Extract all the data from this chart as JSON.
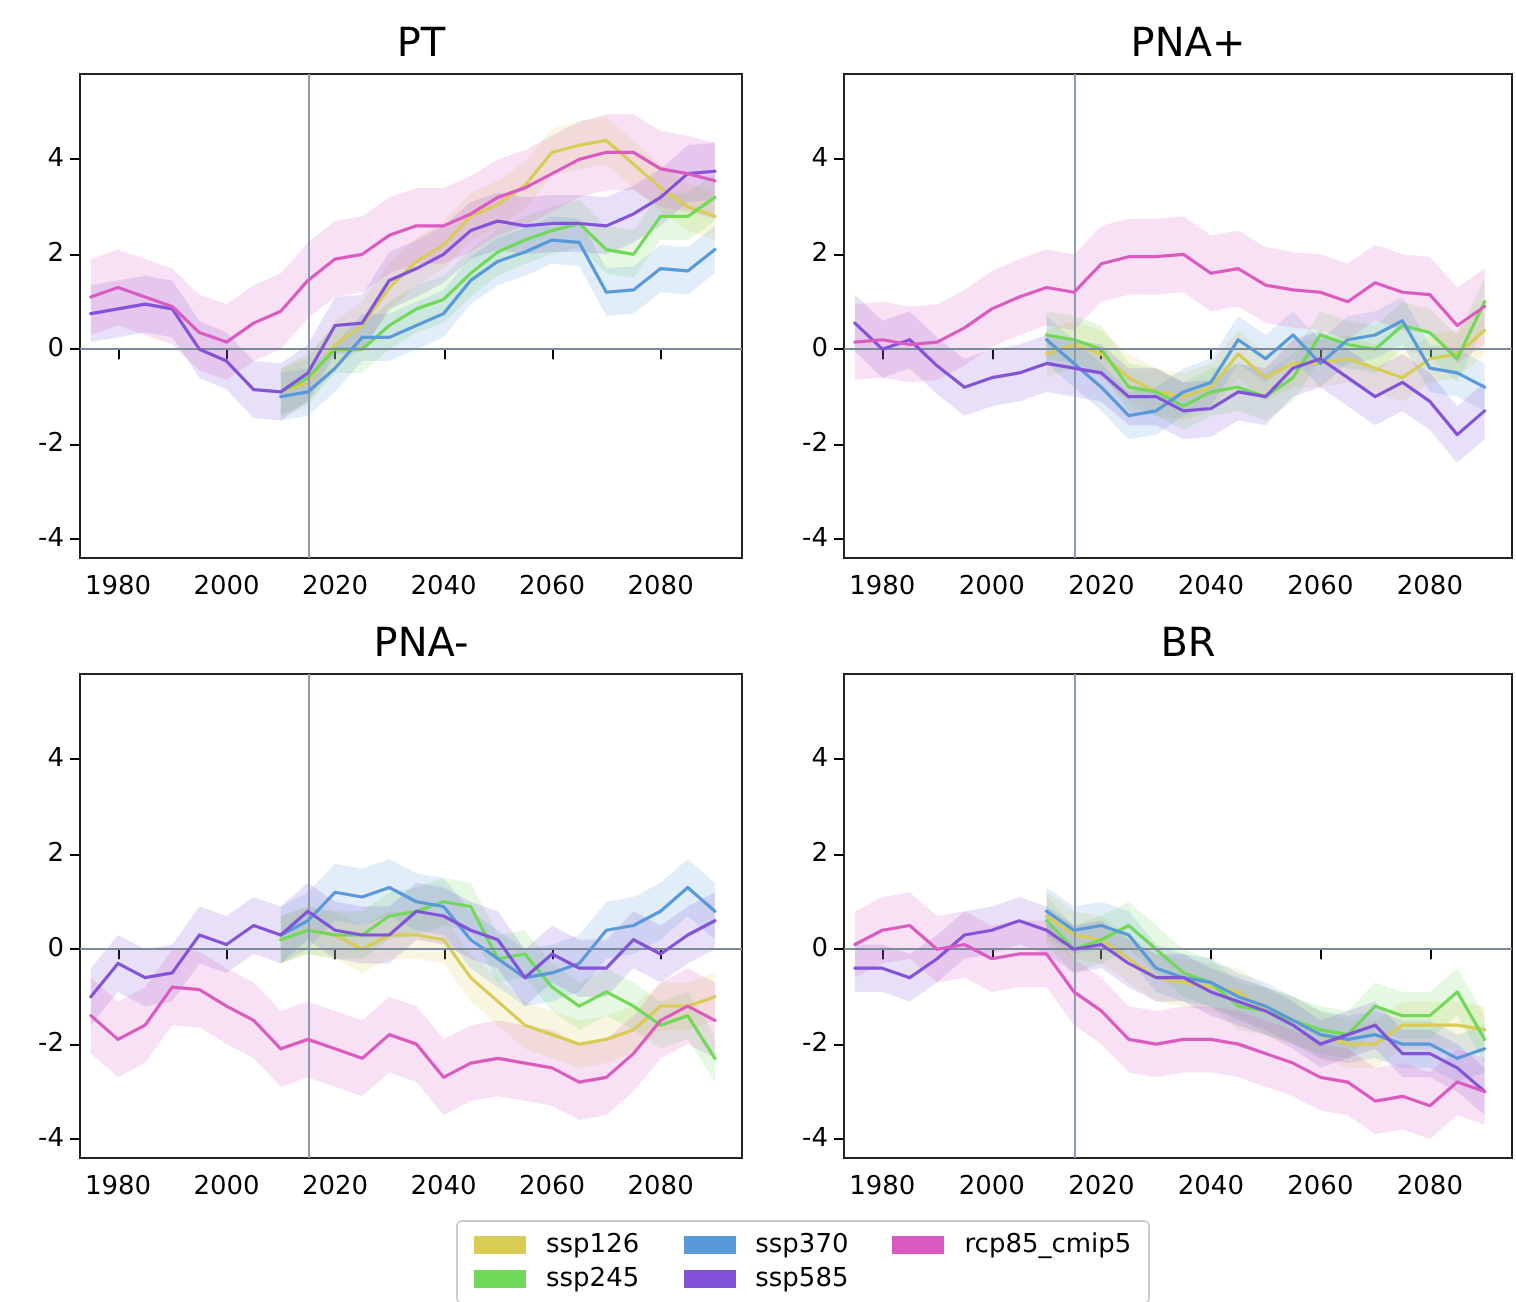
{
  "chart_data": [
    {
      "type": "line",
      "title": "PT",
      "x": [
        1975,
        1980,
        1985,
        1990,
        1995,
        2000,
        2005,
        2010,
        2015,
        2020,
        2025,
        2030,
        2035,
        2040,
        2045,
        2050,
        2055,
        2060,
        2065,
        2070,
        2075,
        2080,
        2085,
        2090
      ],
      "xlim": [
        1973,
        2095
      ],
      "xticks": [
        1980,
        2000,
        2020,
        2040,
        2060,
        2080
      ],
      "ylim": [
        -4.4,
        5.8
      ],
      "yticks": [
        -4,
        -2,
        0,
        2,
        4
      ],
      "legend": "bottom",
      "ref_lines": [
        {
          "axis": "x",
          "value": 2015,
          "color": "#8c9bb0"
        },
        {
          "axis": "y",
          "value": 0,
          "color": "#7c8a99"
        }
      ],
      "series": [
        {
          "name": "ssp126",
          "color": "#d9cc55",
          "x": [
            2010,
            2015,
            2020,
            2025,
            2030,
            2035,
            2040,
            2045,
            2050,
            2055,
            2060,
            2065,
            2070,
            2075,
            2080,
            2085,
            2090
          ],
          "values": [
            -0.9,
            -0.7,
            0.1,
            0.5,
            1.3,
            1.85,
            2.2,
            2.8,
            3.05,
            3.45,
            4.15,
            4.3,
            4.4,
            3.9,
            3.4,
            3.0,
            2.8
          ],
          "lower": [
            -1.4,
            -1.2,
            -0.4,
            0,
            0.8,
            1.35,
            1.7,
            2.3,
            2.55,
            2.95,
            3.65,
            3.8,
            3.9,
            3.4,
            2.9,
            2.5,
            2.3
          ],
          "upper": [
            -0.4,
            -0.2,
            0.6,
            1.0,
            1.8,
            2.35,
            2.7,
            3.3,
            3.55,
            3.95,
            4.65,
            4.8,
            4.9,
            4.4,
            3.9,
            3.5,
            3.3
          ]
        },
        {
          "name": "ssp245",
          "color": "#70d957",
          "x": [
            2010,
            2015,
            2020,
            2025,
            2030,
            2035,
            2040,
            2045,
            2050,
            2055,
            2060,
            2065,
            2070,
            2075,
            2080,
            2085,
            2090
          ],
          "values": [
            -0.9,
            -0.6,
            0,
            0,
            0.5,
            0.85,
            1.05,
            1.6,
            2.05,
            2.3,
            2.5,
            2.65,
            2.1,
            2.0,
            2.8,
            2.8,
            3.2
          ],
          "lower": [
            -1.4,
            -1.1,
            -0.5,
            -0.5,
            0,
            0.35,
            0.55,
            1.1,
            1.55,
            1.8,
            2.0,
            2.15,
            1.6,
            1.5,
            2.3,
            2.3,
            2.7
          ],
          "upper": [
            -0.4,
            -0.1,
            0.5,
            0.5,
            1.0,
            1.35,
            1.55,
            2.1,
            2.55,
            2.8,
            3.0,
            3.15,
            2.6,
            2.5,
            3.3,
            3.3,
            3.7
          ]
        },
        {
          "name": "ssp370",
          "color": "#5899d9",
          "x": [
            2010,
            2015,
            2020,
            2025,
            2030,
            2035,
            2040,
            2045,
            2050,
            2055,
            2060,
            2065,
            2070,
            2075,
            2080,
            2085,
            2090
          ],
          "values": [
            -1.0,
            -0.9,
            -0.4,
            0.25,
            0.25,
            0.5,
            0.75,
            1.45,
            1.85,
            2.05,
            2.3,
            2.25,
            1.2,
            1.25,
            1.7,
            1.65,
            2.1
          ],
          "lower": [
            -1.5,
            -1.4,
            -0.9,
            -0.25,
            -0.25,
            0,
            0.25,
            0.95,
            1.35,
            1.55,
            1.8,
            1.75,
            0.7,
            0.75,
            1.2,
            1.15,
            1.6
          ],
          "upper": [
            -0.5,
            -0.4,
            0.1,
            0.75,
            0.75,
            1.0,
            1.25,
            1.95,
            2.35,
            2.55,
            2.8,
            2.75,
            1.7,
            1.75,
            2.2,
            2.15,
            2.6
          ]
        },
        {
          "name": "ssp585",
          "color": "#8253d8",
          "values": [
            0.75,
            0.85,
            0.95,
            0.85,
            0,
            -0.25,
            -0.85,
            -0.9,
            -0.5,
            0.5,
            0.55,
            1.45,
            1.7,
            2.0,
            2.5,
            2.7,
            2.6,
            2.65,
            2.65,
            2.6,
            2.85,
            3.2,
            3.7,
            3.75
          ],
          "lower": [
            0.15,
            0.25,
            0.35,
            0.25,
            -0.6,
            -0.85,
            -1.45,
            -1.5,
            -1.1,
            -0.1,
            -0.05,
            0.85,
            1.1,
            1.4,
            1.9,
            2.1,
            2.0,
            2.05,
            2.05,
            2.0,
            2.25,
            2.6,
            3.1,
            3.15
          ],
          "upper": [
            1.35,
            1.45,
            1.55,
            1.45,
            0.6,
            0.35,
            -0.25,
            -0.3,
            0.1,
            1.1,
            1.15,
            2.05,
            2.3,
            2.6,
            3.1,
            3.3,
            3.2,
            3.25,
            3.25,
            3.2,
            3.45,
            3.8,
            4.3,
            4.35
          ]
        },
        {
          "name": "rcp85_cmip5",
          "color": "#da5ac0",
          "values": [
            1.1,
            1.3,
            1.1,
            0.9,
            0.35,
            0.15,
            0.55,
            0.8,
            1.45,
            1.9,
            2.0,
            2.4,
            2.6,
            2.6,
            2.85,
            3.2,
            3.4,
            3.7,
            4.0,
            4.15,
            4.15,
            3.8,
            3.7,
            3.55
          ],
          "lower": [
            0.3,
            0.5,
            0.3,
            0.1,
            -0.45,
            -0.65,
            -0.25,
            0,
            0.65,
            1.1,
            1.2,
            1.6,
            1.8,
            1.8,
            2.05,
            2.4,
            2.6,
            2.9,
            3.2,
            3.35,
            3.35,
            3.0,
            2.9,
            2.75
          ],
          "upper": [
            1.9,
            2.1,
            1.9,
            1.7,
            1.15,
            0.95,
            1.35,
            1.6,
            2.25,
            2.7,
            2.8,
            3.2,
            3.4,
            3.4,
            3.65,
            4.0,
            4.2,
            4.5,
            4.8,
            4.95,
            4.95,
            4.6,
            4.5,
            4.35
          ]
        }
      ]
    },
    {
      "type": "line",
      "title": "PNA+",
      "x": [
        1975,
        1980,
        1985,
        1990,
        1995,
        2000,
        2005,
        2010,
        2015,
        2020,
        2025,
        2030,
        2035,
        2040,
        2045,
        2050,
        2055,
        2060,
        2065,
        2070,
        2075,
        2080,
        2085,
        2090
      ],
      "xlim": [
        1973,
        2095
      ],
      "xticks": [
        1980,
        2000,
        2020,
        2040,
        2060,
        2080
      ],
      "ylim": [
        -4.4,
        5.8
      ],
      "yticks": [
        -4,
        -2,
        0,
        2,
        4
      ],
      "legend": "bottom",
      "ref_lines": [
        {
          "axis": "x",
          "value": 2015,
          "color": "#8c9bb0"
        },
        {
          "axis": "y",
          "value": 0,
          "color": "#7c8a99"
        }
      ],
      "series": [
        {
          "name": "ssp126",
          "color": "#d9cc55",
          "x": [
            2010,
            2015,
            2020,
            2025,
            2030,
            2035,
            2040,
            2045,
            2050,
            2055,
            2060,
            2065,
            2070,
            2075,
            2080,
            2085,
            2090
          ],
          "values": [
            -0.1,
            0.1,
            -0.1,
            -0.6,
            -0.9,
            -1.0,
            -0.8,
            -0.1,
            -0.6,
            -0.3,
            -0.3,
            -0.2,
            -0.4,
            -0.6,
            -0.2,
            -0.1,
            0.4
          ],
          "lower": [
            -0.6,
            -0.4,
            -0.6,
            -1.1,
            -1.4,
            -1.5,
            -1.3,
            -0.6,
            -1.1,
            -0.8,
            -0.8,
            -0.7,
            -0.9,
            -1.1,
            -0.7,
            -0.6,
            -0.1
          ],
          "upper": [
            0.4,
            0.6,
            0.4,
            -0.1,
            -0.4,
            -0.5,
            -0.3,
            0.4,
            -0.1,
            0.2,
            0.2,
            0.3,
            0.1,
            -0.1,
            0.3,
            0.4,
            0.9
          ]
        },
        {
          "name": "ssp245",
          "color": "#70d957",
          "x": [
            2010,
            2015,
            2020,
            2025,
            2030,
            2035,
            2040,
            2045,
            2050,
            2055,
            2060,
            2065,
            2070,
            2075,
            2080,
            2085,
            2090
          ],
          "values": [
            0.3,
            0.2,
            0,
            -0.8,
            -0.9,
            -1.2,
            -0.9,
            -0.8,
            -1.0,
            -0.6,
            0.3,
            0.1,
            0,
            0.5,
            0.35,
            -0.2,
            1.0
          ],
          "lower": [
            -0.2,
            -0.3,
            -0.5,
            -1.3,
            -1.4,
            -1.7,
            -1.4,
            -1.3,
            -1.5,
            -1.1,
            -0.2,
            -0.4,
            -0.5,
            0,
            -0.15,
            -0.7,
            0.5
          ],
          "upper": [
            0.8,
            0.7,
            0.5,
            -0.3,
            -0.4,
            -0.7,
            -0.4,
            -0.3,
            -0.5,
            -0.1,
            0.8,
            0.6,
            0.5,
            1.0,
            0.85,
            0.3,
            1.5
          ]
        },
        {
          "name": "ssp370",
          "color": "#5899d9",
          "x": [
            2010,
            2015,
            2020,
            2025,
            2030,
            2035,
            2040,
            2045,
            2050,
            2055,
            2060,
            2065,
            2070,
            2075,
            2080,
            2085,
            2090
          ],
          "values": [
            0.2,
            -0.3,
            -0.8,
            -1.4,
            -1.3,
            -0.9,
            -0.7,
            0.2,
            -0.2,
            0.3,
            -0.3,
            0.2,
            0.3,
            0.6,
            -0.4,
            -0.5,
            -0.8
          ],
          "lower": [
            -0.3,
            -0.8,
            -1.3,
            -1.9,
            -1.8,
            -1.4,
            -1.2,
            -0.3,
            -0.7,
            -0.2,
            -0.8,
            -0.3,
            -0.2,
            0.1,
            -0.9,
            -1.0,
            -1.3
          ],
          "upper": [
            0.7,
            0.2,
            -0.3,
            -0.9,
            -0.8,
            -0.4,
            -0.2,
            0.7,
            0.3,
            0.8,
            0.2,
            0.7,
            0.8,
            1.1,
            0.1,
            0,
            -0.3
          ]
        },
        {
          "name": "ssp585",
          "color": "#8253d8",
          "values": [
            0.55,
            0,
            0.2,
            -0.35,
            -0.8,
            -0.6,
            -0.5,
            -0.3,
            -0.4,
            -0.5,
            -1.0,
            -1.0,
            -1.3,
            -1.25,
            -0.9,
            -1.0,
            -0.4,
            -0.2,
            -0.6,
            -1.0,
            -0.7,
            -1.1,
            -1.8,
            -1.3
          ],
          "lower": [
            -0.05,
            -0.6,
            -0.4,
            -0.95,
            -1.4,
            -1.2,
            -1.1,
            -0.9,
            -1.0,
            -1.1,
            -1.6,
            -1.6,
            -1.9,
            -1.85,
            -1.5,
            -1.6,
            -1.0,
            -0.8,
            -1.2,
            -1.6,
            -1.3,
            -1.7,
            -2.4,
            -1.9
          ],
          "upper": [
            1.15,
            0.6,
            0.8,
            0.25,
            -0.2,
            0,
            0.1,
            0.3,
            0.2,
            0.1,
            -0.4,
            -0.4,
            -0.7,
            -0.65,
            -0.3,
            -0.4,
            0.2,
            0.4,
            0,
            -0.4,
            -0.1,
            -0.5,
            -1.2,
            -0.7
          ]
        },
        {
          "name": "rcp85_cmip5",
          "color": "#da5ac0",
          "values": [
            0.15,
            0.2,
            0.1,
            0.15,
            0.45,
            0.85,
            1.1,
            1.3,
            1.2,
            1.8,
            1.95,
            1.95,
            2.0,
            1.6,
            1.7,
            1.35,
            1.25,
            1.2,
            1.0,
            1.4,
            1.2,
            1.15,
            0.5,
            0.9
          ],
          "lower": [
            -0.65,
            -0.6,
            -0.7,
            -0.65,
            -0.35,
            0.05,
            0.3,
            0.5,
            0.4,
            1.0,
            1.15,
            1.15,
            1.2,
            0.8,
            0.9,
            0.55,
            0.45,
            0.4,
            0.2,
            0.6,
            0.4,
            0.35,
            -0.3,
            0.1
          ],
          "upper": [
            0.95,
            1.0,
            0.9,
            0.95,
            1.25,
            1.65,
            1.9,
            2.1,
            2.0,
            2.6,
            2.75,
            2.75,
            2.8,
            2.4,
            2.5,
            2.15,
            2.05,
            2.0,
            1.8,
            2.2,
            2.0,
            1.95,
            1.3,
            1.7
          ]
        }
      ]
    },
    {
      "type": "line",
      "title": "PNA-",
      "x": [
        1975,
        1980,
        1985,
        1990,
        1995,
        2000,
        2005,
        2010,
        2015,
        2020,
        2025,
        2030,
        2035,
        2040,
        2045,
        2050,
        2055,
        2060,
        2065,
        2070,
        2075,
        2080,
        2085,
        2090
      ],
      "xlim": [
        1973,
        2095
      ],
      "xticks": [
        1980,
        2000,
        2020,
        2040,
        2060,
        2080
      ],
      "ylim": [
        -4.4,
        5.8
      ],
      "yticks": [
        -4,
        -2,
        0,
        2,
        4
      ],
      "legend": "bottom",
      "ref_lines": [
        {
          "axis": "x",
          "value": 2015,
          "color": "#8c9bb0"
        },
        {
          "axis": "y",
          "value": 0,
          "color": "#7c8a99"
        }
      ],
      "series": [
        {
          "name": "ssp126",
          "color": "#d9cc55",
          "x": [
            2010,
            2015,
            2020,
            2025,
            2030,
            2035,
            2040,
            2045,
            2050,
            2055,
            2060,
            2065,
            2070,
            2075,
            2080,
            2085,
            2090
          ],
          "values": [
            0.2,
            0.4,
            0.3,
            0,
            0.3,
            0.3,
            0.2,
            -0.6,
            -1.1,
            -1.6,
            -1.8,
            -2.0,
            -1.9,
            -1.7,
            -1.2,
            -1.2,
            -1.0
          ],
          "lower": [
            -0.3,
            -0.1,
            -0.2,
            -0.5,
            -0.2,
            -0.2,
            -0.3,
            -1.1,
            -1.6,
            -2.1,
            -2.3,
            -2.5,
            -2.4,
            -2.2,
            -1.7,
            -1.7,
            -1.5
          ],
          "upper": [
            0.7,
            0.9,
            0.8,
            0.5,
            0.8,
            0.8,
            0.7,
            -0.1,
            -0.6,
            -1.1,
            -1.3,
            -1.5,
            -1.4,
            -1.2,
            -0.7,
            -0.7,
            -0.5
          ]
        },
        {
          "name": "ssp245",
          "color": "#70d957",
          "x": [
            2010,
            2015,
            2020,
            2025,
            2030,
            2035,
            2040,
            2045,
            2050,
            2055,
            2060,
            2065,
            2070,
            2075,
            2080,
            2085,
            2090
          ],
          "values": [
            0.2,
            0.4,
            0.3,
            0.3,
            0.7,
            0.8,
            1.0,
            0.9,
            -0.2,
            -0.1,
            -0.8,
            -1.2,
            -0.9,
            -1.2,
            -1.6,
            -1.4,
            -2.3
          ],
          "lower": [
            -0.3,
            -0.1,
            -0.2,
            -0.2,
            0.2,
            0.3,
            0.5,
            0.4,
            -0.7,
            -0.6,
            -1.3,
            -1.7,
            -1.4,
            -1.7,
            -2.1,
            -1.9,
            -2.8
          ],
          "upper": [
            0.7,
            0.9,
            0.8,
            0.8,
            1.2,
            1.3,
            1.5,
            1.4,
            0.3,
            0.4,
            -0.3,
            -0.7,
            -0.4,
            -0.7,
            -1.1,
            -0.9,
            -1.8
          ]
        },
        {
          "name": "ssp370",
          "color": "#5899d9",
          "x": [
            2010,
            2015,
            2020,
            2025,
            2030,
            2035,
            2040,
            2045,
            2050,
            2055,
            2060,
            2065,
            2070,
            2075,
            2080,
            2085,
            2090
          ],
          "values": [
            0.3,
            0.6,
            1.2,
            1.1,
            1.3,
            1.0,
            0.9,
            0.2,
            -0.2,
            -0.6,
            -0.5,
            -0.3,
            0.4,
            0.5,
            0.8,
            1.3,
            0.8
          ],
          "lower": [
            -0.3,
            0,
            0.6,
            0.5,
            0.7,
            0.4,
            0.3,
            -0.4,
            -0.8,
            -1.2,
            -1.1,
            -0.9,
            -0.2,
            -0.1,
            0.2,
            0.7,
            0.2
          ],
          "upper": [
            0.9,
            1.2,
            1.8,
            1.7,
            1.9,
            1.6,
            1.5,
            0.8,
            0.4,
            0,
            0.1,
            0.3,
            1.0,
            1.1,
            1.4,
            1.9,
            1.4
          ]
        },
        {
          "name": "ssp585",
          "color": "#8253d8",
          "values": [
            -1.0,
            -0.3,
            -0.6,
            -0.5,
            0.3,
            0.1,
            0.5,
            0.3,
            0.8,
            0.4,
            0.3,
            0.3,
            0.8,
            0.7,
            0.4,
            0.2,
            -0.6,
            -0.1,
            -0.4,
            -0.4,
            0.2,
            -0.1,
            0.3,
            0.6
          ],
          "lower": [
            -1.6,
            -0.9,
            -1.2,
            -1.1,
            -0.3,
            -0.5,
            -0.1,
            -0.3,
            0.2,
            -0.2,
            -0.3,
            -0.3,
            0.2,
            0.1,
            -0.2,
            -0.4,
            -1.2,
            -0.7,
            -1.0,
            -1.0,
            -0.4,
            -0.7,
            -0.3,
            0
          ],
          "upper": [
            -0.4,
            0.3,
            0,
            0.1,
            0.9,
            0.7,
            1.1,
            0.9,
            1.4,
            1.0,
            0.9,
            0.9,
            1.4,
            1.3,
            1.0,
            0.8,
            0,
            0.5,
            0.2,
            0.2,
            0.8,
            0.5,
            0.9,
            1.2
          ]
        },
        {
          "name": "rcp85_cmip5",
          "color": "#da5ac0",
          "values": [
            -1.4,
            -1.9,
            -1.6,
            -0.8,
            -0.85,
            -1.2,
            -1.5,
            -2.1,
            -1.9,
            -2.1,
            -2.3,
            -1.8,
            -2.0,
            -2.7,
            -2.4,
            -2.3,
            -2.4,
            -2.5,
            -2.8,
            -2.7,
            -2.2,
            -1.5,
            -1.2,
            -1.5
          ],
          "lower": [
            -2.2,
            -2.7,
            -2.4,
            -1.6,
            -1.65,
            -2.0,
            -2.3,
            -2.9,
            -2.7,
            -2.9,
            -3.1,
            -2.6,
            -2.8,
            -3.5,
            -3.2,
            -3.1,
            -3.2,
            -3.3,
            -3.6,
            -3.5,
            -3.0,
            -2.3,
            -2.0,
            -2.3
          ],
          "upper": [
            -0.6,
            -1.1,
            -0.8,
            0,
            -0.05,
            -0.4,
            -0.7,
            -1.3,
            -1.1,
            -1.3,
            -1.5,
            -1.0,
            -1.2,
            -1.9,
            -1.6,
            -1.5,
            -1.6,
            -1.7,
            -2.0,
            -1.9,
            -1.4,
            -0.7,
            -0.4,
            -0.7
          ]
        }
      ]
    },
    {
      "type": "line",
      "title": "BR",
      "x": [
        1975,
        1980,
        1985,
        1990,
        1995,
        2000,
        2005,
        2010,
        2015,
        2020,
        2025,
        2030,
        2035,
        2040,
        2045,
        2050,
        2055,
        2060,
        2065,
        2070,
        2075,
        2080,
        2085,
        2090
      ],
      "xlim": [
        1973,
        2095
      ],
      "xticks": [
        1980,
        2000,
        2020,
        2040,
        2060,
        2080
      ],
      "ylim": [
        -4.4,
        5.8
      ],
      "yticks": [
        -4,
        -2,
        0,
        2,
        4
      ],
      "legend": "bottom",
      "ref_lines": [
        {
          "axis": "x",
          "value": 2015,
          "color": "#8c9bb0"
        },
        {
          "axis": "y",
          "value": 0,
          "color": "#7c8a99"
        }
      ],
      "series": [
        {
          "name": "ssp126",
          "color": "#d9cc55",
          "x": [
            2010,
            2015,
            2020,
            2025,
            2030,
            2035,
            2040,
            2045,
            2050,
            2055,
            2060,
            2065,
            2070,
            2075,
            2080,
            2085,
            2090
          ],
          "values": [
            0.7,
            0.3,
            0.2,
            -0.2,
            -0.6,
            -0.7,
            -0.8,
            -0.9,
            -1.3,
            -1.5,
            -1.8,
            -2.0,
            -2.0,
            -1.6,
            -1.6,
            -1.6,
            -1.7
          ],
          "lower": [
            0.2,
            -0.2,
            -0.3,
            -0.7,
            -1.1,
            -1.2,
            -1.3,
            -1.4,
            -1.8,
            -2.0,
            -2.3,
            -2.5,
            -2.5,
            -2.1,
            -2.1,
            -2.1,
            -2.2
          ],
          "upper": [
            1.2,
            0.8,
            0.7,
            0.3,
            -0.1,
            -0.2,
            -0.3,
            -0.4,
            -0.8,
            -1.0,
            -1.3,
            -1.5,
            -1.5,
            -1.1,
            -1.1,
            -1.1,
            -1.2
          ]
        },
        {
          "name": "ssp245",
          "color": "#70d957",
          "x": [
            2010,
            2015,
            2020,
            2025,
            2030,
            2035,
            2040,
            2045,
            2050,
            2055,
            2060,
            2065,
            2070,
            2075,
            2080,
            2085,
            2090
          ],
          "values": [
            0.6,
            0,
            0.2,
            0.5,
            0,
            -0.5,
            -0.7,
            -1.2,
            -1.3,
            -1.5,
            -1.7,
            -1.8,
            -1.2,
            -1.4,
            -1.4,
            -0.9,
            -1.9
          ],
          "lower": [
            0.1,
            -0.5,
            -0.3,
            0,
            -0.5,
            -1.0,
            -1.2,
            -1.7,
            -1.8,
            -2.0,
            -2.2,
            -2.3,
            -1.7,
            -1.9,
            -1.9,
            -1.4,
            -2.4
          ],
          "upper": [
            1.1,
            0.5,
            0.7,
            1.0,
            0.5,
            0,
            -0.2,
            -0.7,
            -0.8,
            -1.0,
            -1.2,
            -1.3,
            -0.7,
            -0.9,
            -0.9,
            -0.4,
            -1.4
          ]
        },
        {
          "name": "ssp370",
          "color": "#5899d9",
          "x": [
            2010,
            2015,
            2020,
            2025,
            2030,
            2035,
            2040,
            2045,
            2050,
            2055,
            2060,
            2065,
            2070,
            2075,
            2080,
            2085,
            2090
          ],
          "values": [
            0.8,
            0.4,
            0.5,
            0.3,
            -0.4,
            -0.6,
            -0.7,
            -1.0,
            -1.2,
            -1.5,
            -1.8,
            -1.9,
            -1.8,
            -2.0,
            -2.0,
            -2.3,
            -2.1
          ],
          "lower": [
            0.3,
            -0.1,
            0,
            -0.2,
            -0.9,
            -1.1,
            -1.2,
            -1.5,
            -1.7,
            -2.0,
            -2.3,
            -2.4,
            -2.3,
            -2.5,
            -2.5,
            -2.8,
            -2.6
          ],
          "upper": [
            1.3,
            0.9,
            1.0,
            0.8,
            0.1,
            -0.1,
            -0.2,
            -0.5,
            -0.7,
            -1.0,
            -1.3,
            -1.4,
            -1.3,
            -1.5,
            -1.5,
            -1.8,
            -1.6
          ]
        },
        {
          "name": "ssp585",
          "color": "#8253d8",
          "values": [
            -0.4,
            -0.4,
            -0.6,
            -0.2,
            0.3,
            0.4,
            0.6,
            0.4,
            0,
            0.1,
            -0.3,
            -0.6,
            -0.6,
            -0.9,
            -1.1,
            -1.3,
            -1.6,
            -2.0,
            -1.8,
            -1.6,
            -2.2,
            -2.2,
            -2.5,
            -3.0
          ],
          "lower": [
            -0.9,
            -0.9,
            -1.1,
            -0.7,
            -0.2,
            -0.1,
            0.1,
            -0.1,
            -0.5,
            -0.4,
            -0.8,
            -1.1,
            -1.1,
            -1.4,
            -1.6,
            -1.8,
            -2.1,
            -2.5,
            -2.3,
            -2.1,
            -2.7,
            -2.7,
            -3.0,
            -3.5
          ],
          "upper": [
            0.1,
            0.1,
            -0.1,
            0.3,
            0.8,
            0.9,
            1.1,
            0.9,
            0.5,
            0.6,
            0.2,
            -0.1,
            -0.1,
            -0.4,
            -0.6,
            -0.8,
            -1.1,
            -1.5,
            -1.3,
            -1.1,
            -1.7,
            -1.7,
            -2.0,
            -2.5
          ]
        },
        {
          "name": "rcp85_cmip5",
          "color": "#da5ac0",
          "values": [
            0.1,
            0.4,
            0.5,
            0,
            0.1,
            -0.2,
            -0.1,
            -0.1,
            -0.9,
            -1.3,
            -1.9,
            -2.0,
            -1.9,
            -1.9,
            -2.0,
            -2.2,
            -2.4,
            -2.7,
            -2.8,
            -3.2,
            -3.1,
            -3.3,
            -2.8,
            -3.0
          ],
          "lower": [
            -0.6,
            -0.3,
            -0.2,
            -0.7,
            -0.6,
            -0.9,
            -0.8,
            -0.8,
            -1.6,
            -2.0,
            -2.6,
            -2.7,
            -2.6,
            -2.6,
            -2.7,
            -2.9,
            -3.1,
            -3.4,
            -3.5,
            -3.9,
            -3.8,
            -4.0,
            -3.5,
            -3.7
          ],
          "upper": [
            0.8,
            1.1,
            1.2,
            0.7,
            0.8,
            0.5,
            0.6,
            0.6,
            -0.2,
            -0.6,
            -1.2,
            -1.3,
            -1.2,
            -1.2,
            -1.3,
            -1.5,
            -1.7,
            -2.0,
            -2.1,
            -2.5,
            -2.4,
            -2.6,
            -2.1,
            -2.3
          ]
        }
      ]
    }
  ]
}
